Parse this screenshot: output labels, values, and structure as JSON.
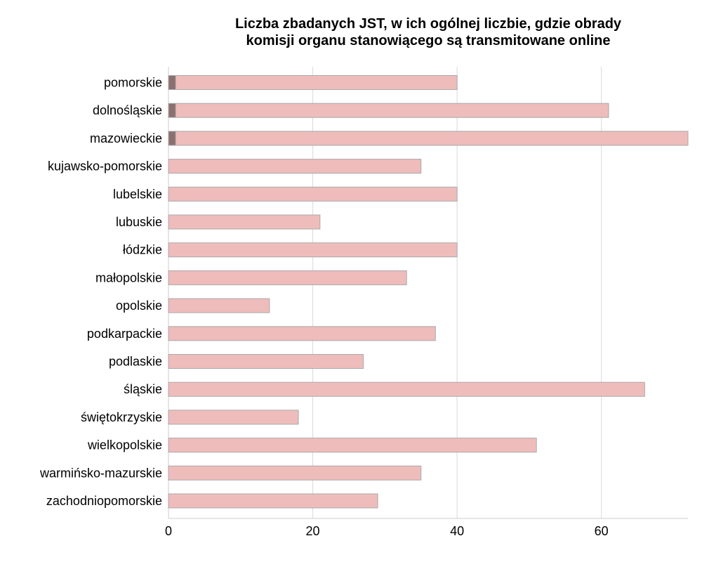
{
  "chart_data": {
    "type": "bar",
    "orientation": "horizontal",
    "stacked": true,
    "title_lines": [
      "Liczba zbadanych JST, w ich ogólnej liczbie, gdzie obrady",
      "komisji organu stanowiącego są transmitowane online"
    ],
    "xlabel": "",
    "ylabel": "",
    "xlim": [
      0,
      72
    ],
    "x_ticks": [
      0,
      20,
      40,
      60
    ],
    "grid": "vertical",
    "legend": "none",
    "categories": [
      "pomorskie",
      "dolnośląskie",
      "mazowieckie",
      "kujawsko-pomorskie",
      "lubelskie",
      "lubuskie",
      "łódzkie",
      "małopolskie",
      "opolskie",
      "podkarpackie",
      "podlaskie",
      "śląskie",
      "świętokrzyskie",
      "wielkopolskie",
      "warmińsko-mazurskie",
      "zachodniopomorskie"
    ],
    "series": [
      {
        "color": "#8c7070",
        "values": [
          1,
          1,
          1,
          0,
          0,
          0,
          0,
          0,
          0,
          0,
          0,
          0,
          0,
          0,
          0,
          0
        ]
      },
      {
        "color": "#efbcbc",
        "values": [
          39,
          60,
          71,
          35,
          40,
          21,
          40,
          33,
          14,
          37,
          27,
          66,
          18,
          51,
          35,
          29
        ]
      }
    ],
    "bar_stroke_color": "#a9a9a9",
    "grid_color": "#d9d9d9",
    "axis_color": "#cccccc"
  }
}
